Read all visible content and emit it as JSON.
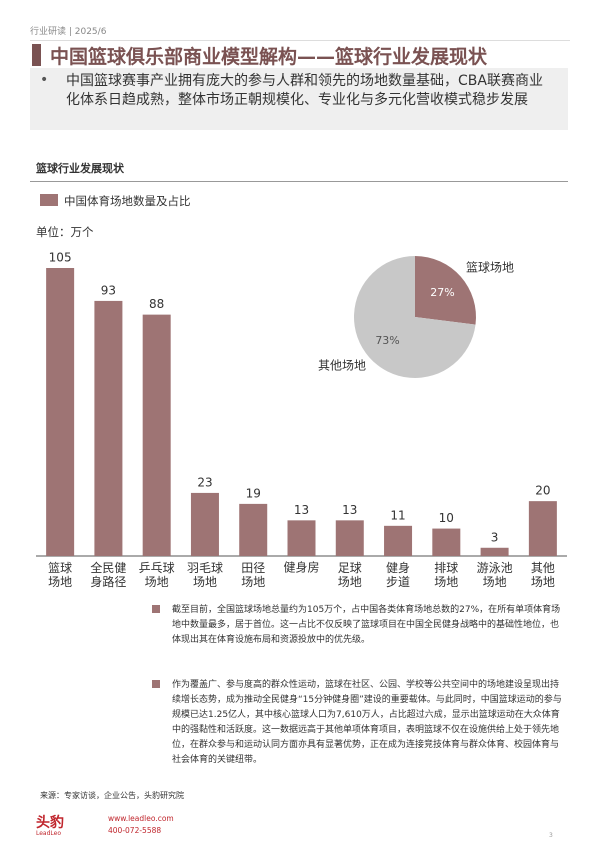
{
  "header": {
    "tag": "行业研读 | 2025/6",
    "title": "中国篮球俱乐部商业模型解构——篮球行业发展现状"
  },
  "summary": "中国篮球赛事产业拥有庞大的参与人群和领先的场地数量基础，CBA联赛商业化体系日趋成熟，整体市场正朝规模化、专业化与多元化营收模式稳步发展",
  "section_title": "篮球行业发展现状",
  "chart_data": [
    {
      "type": "bar",
      "unit_label": "单位：万个",
      "categories": [
        "篮球\n场地",
        "全民健\n身路径",
        "乒乓球\n场地",
        "羽毛球\n场地",
        "田径\n场地",
        "健身房",
        "足球\n场地",
        "健身\n步道",
        "排球\n场地",
        "游泳池\n场地",
        "其他\n场地"
      ],
      "series": [
        {
          "name": "中国体育场地数量及占比",
          "color": "#9e7474",
          "values": [
            105,
            93,
            88,
            23,
            19,
            13,
            13,
            11,
            10,
            3,
            20
          ]
        }
      ]
    },
    {
      "type": "pie",
      "categories": [
        "篮球场地",
        "其他场地"
      ],
      "values": [
        27,
        73
      ],
      "value_labels": [
        "27%",
        "73%"
      ],
      "colors": [
        "#9e7474",
        "#c8c8c8"
      ]
    }
  ],
  "bullets": [
    "截至目前，全国篮球场地总量约为105万个，占中国各类体育场地总数的27%，在所有单项体育场地中数量最多，居于首位。这一占比不仅反映了篮球项目在中国全民健身战略中的基础性地位，也体现出其在体育设施布局和资源投放中的优先级。",
    "作为覆盖广、参与度高的群众性运动，篮球在社区、公园、学校等公共空间中的场地建设呈现出持续增长态势，成为推动全民健身“15分钟健身圈”建设的重要载体。与此同时，中国篮球运动的参与规模已达1.25亿人，其中核心篮球人口为7,610万人，占比超过六成，显示出篮球运动在大众体育中的强黏性和活跃度。这一数据远高于其他单项体育项目，表明篮球不仅在设施供给上处于领先地位，在群众参与和运动认同方面亦具有显著优势，正在成为连接竞技体育与群众体育、校园体育与社会体育的关键纽带。"
  ],
  "source": "来源：专家访谈，企业公告，头豹研究院",
  "footer": {
    "logo": "头豹",
    "logo_en": "LeadLeo",
    "website": "www.leadleo.com",
    "phone": "400-072-5588",
    "page": "3"
  }
}
